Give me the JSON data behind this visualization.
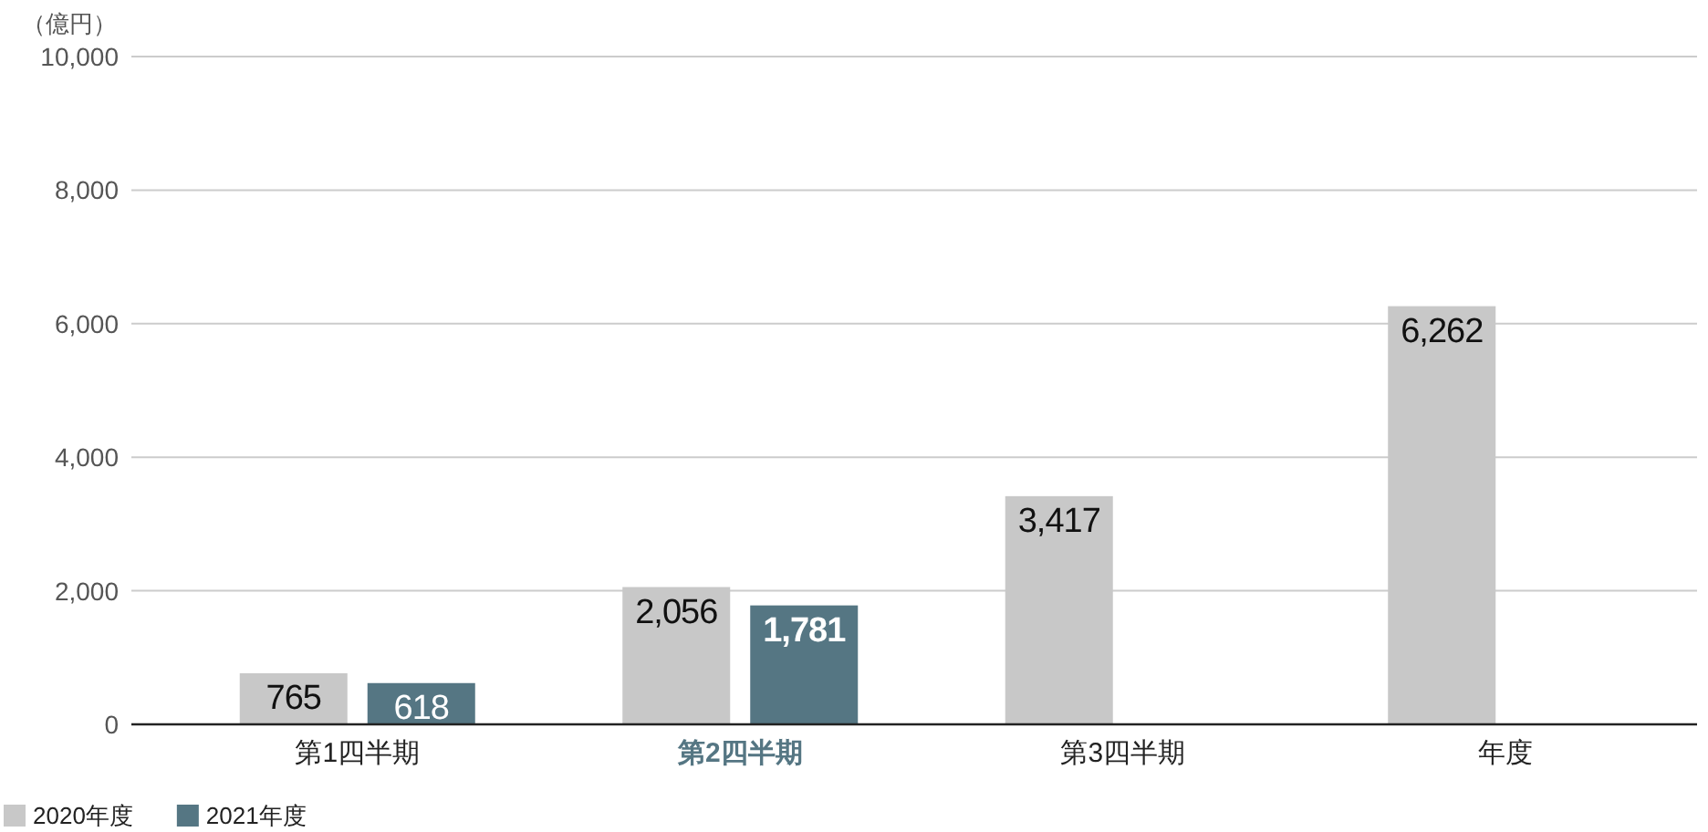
{
  "chart_data": {
    "type": "bar",
    "ylabel": "（億円）",
    "categories": [
      "第1四半期",
      "第2四半期",
      "第3四半期",
      "年度"
    ],
    "series": [
      {
        "name": "2020年度",
        "color": "#c8c8c8",
        "values": [
          765,
          2056,
          3417,
          6262
        ],
        "value_labels": [
          "765",
          "2,056",
          "3,417",
          "6,262"
        ]
      },
      {
        "name": "2021年度",
        "color": "#557683",
        "values": [
          618,
          1781,
          null,
          null
        ],
        "value_labels": [
          "618",
          "1,781",
          null,
          null
        ]
      }
    ],
    "ylim": [
      0,
      10000
    ],
    "yticks": [
      {
        "value": 0,
        "label": "0"
      },
      {
        "value": 2000,
        "label": "2,000"
      },
      {
        "value": 4000,
        "label": "4,000"
      },
      {
        "value": 6000,
        "label": "6,000"
      },
      {
        "value": 8000,
        "label": "8,000"
      },
      {
        "value": 10000,
        "label": "10,000"
      }
    ],
    "grid": "y",
    "legend": "bottom left"
  }
}
